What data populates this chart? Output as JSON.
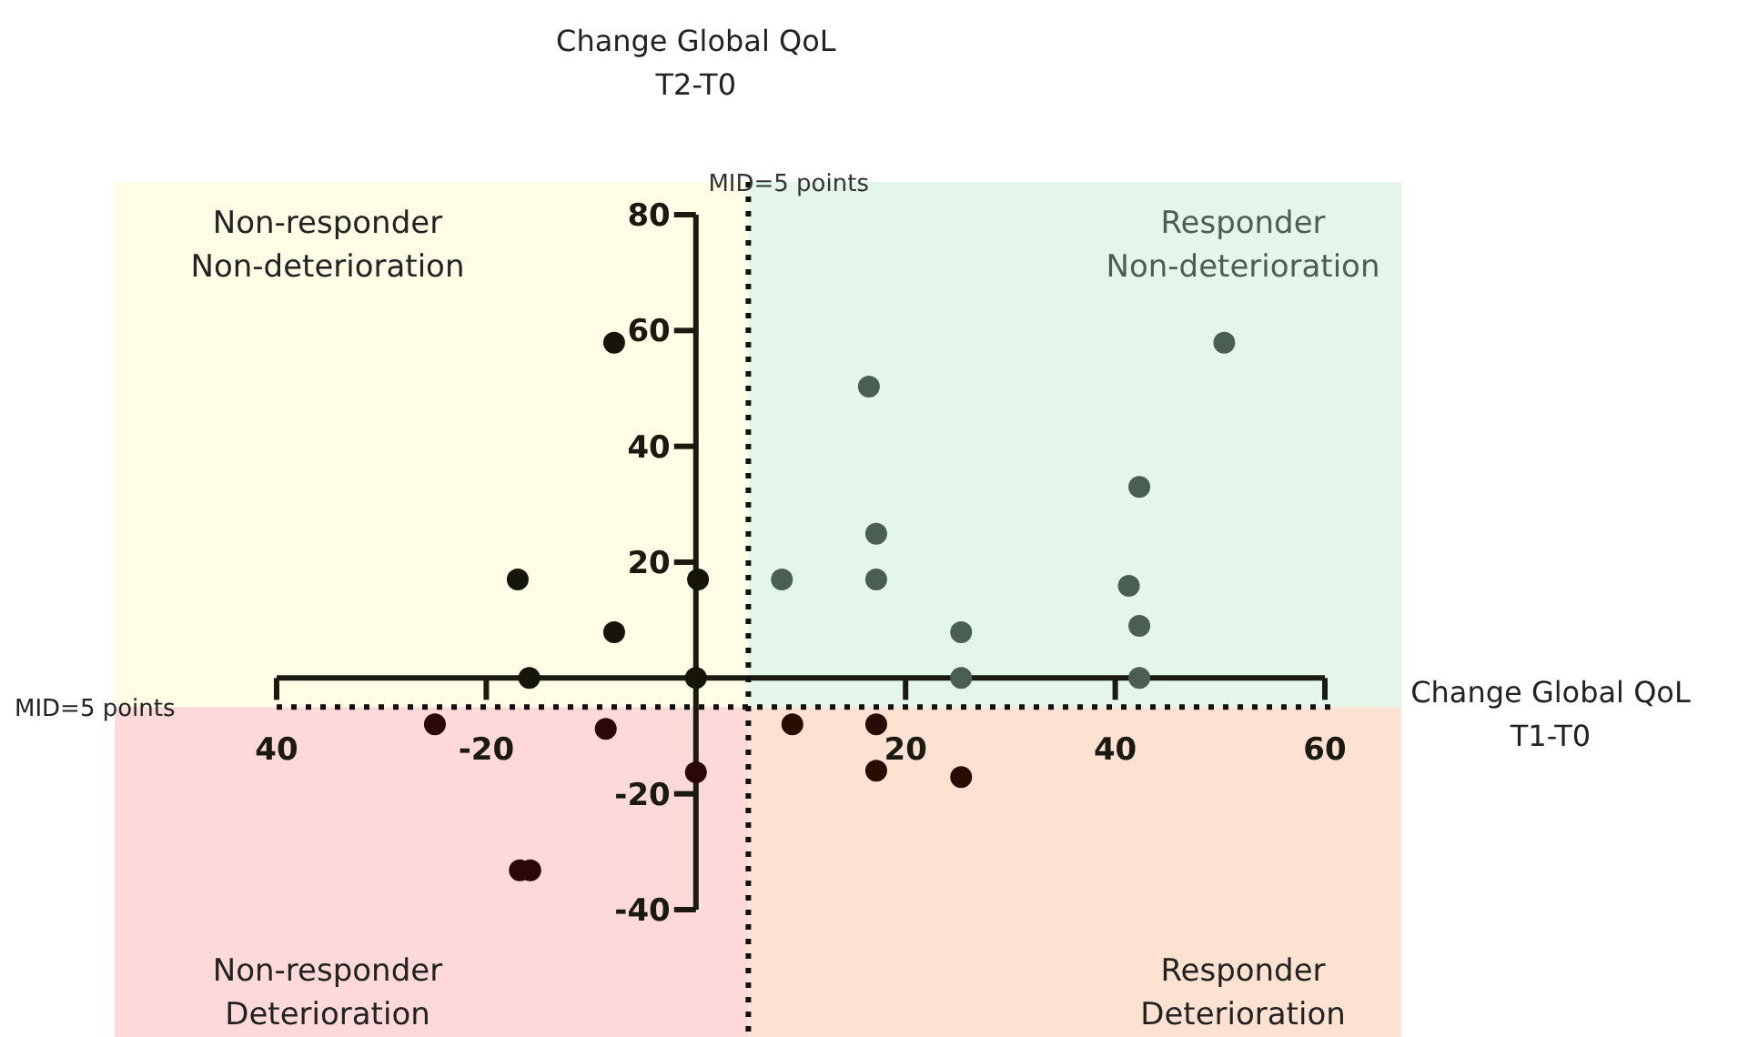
{
  "chart_data": {
    "type": "scatter",
    "xlabel": "Change Global QoL\nT1-T0",
    "ylabel": "Change Global QoL\nT2-T0",
    "x": [
      -7.8,
      -17,
      -15.9,
      -7.8,
      0.2,
      0,
      -24.9,
      -8.6,
      0,
      -16.8,
      -15.8,
      16.5,
      17.2,
      17.2,
      8.2,
      25.3,
      25.3,
      50.4,
      42.3,
      41.3,
      42.3,
      42.3,
      9.2,
      17.2,
      17.2,
      25.3
    ],
    "values": [
      57.9,
      17,
      0,
      7.9,
      17,
      0,
      -8,
      -8.8,
      -16.3,
      -33.2,
      -33.2,
      50.3,
      24.9,
      17,
      17,
      7.9,
      0,
      57.9,
      33,
      15.9,
      9,
      0,
      -8,
      -8,
      -16,
      -17.1
    ],
    "colors": [
      "#15150a",
      "#15150a",
      "#15150a",
      "#15150a",
      "#15150a",
      "#15150a",
      "#2a0808",
      "#2a0808",
      "#2a0808",
      "#2a0808",
      "#2a0808",
      "#4a5e52",
      "#4a5e52",
      "#4a5e52",
      "#4a5e52",
      "#4a5e52",
      "#4a5e52",
      "#4a5e52",
      "#4a5e52",
      "#4a5e52",
      "#4a5e52",
      "#4a5e52",
      "#2a0c04",
      "#2a0c04",
      "#2a0c04",
      "#2a0c04"
    ],
    "marker": "circle",
    "xlim": [
      -40,
      60
    ],
    "ylim": [
      -40,
      80
    ],
    "xticks": [
      {
        "value": -40,
        "label": "40"
      },
      -20,
      20,
      40,
      60
    ],
    "yticks": [
      80,
      60,
      40,
      20,
      -20,
      -40
    ],
    "ref_lines": [
      {
        "axis": "x",
        "value": 5,
        "label": "MID=5 points",
        "line_style": "dotted"
      },
      {
        "axis": "y",
        "value": -5,
        "line_style": "dotted"
      }
    ],
    "annotations": [
      "Non-responder\nNon-deterioration",
      "Responder\nNon-deterioration",
      "Non-responder\nDeterioration",
      "Responder\nDeterioration",
      "MID=5 points"
    ],
    "grid": false
  }
}
